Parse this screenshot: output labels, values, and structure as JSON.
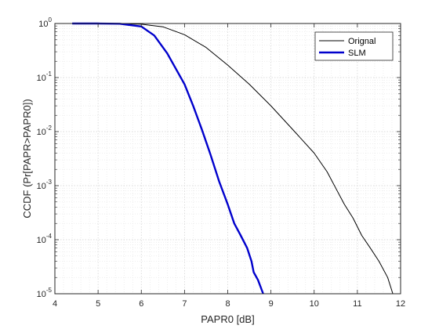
{
  "chart_data": {
    "type": "line",
    "xlabel": "PAPR0 [dB]",
    "ylabel": "CCDF (Pr[PAPR>PAPR0])",
    "xlim": [
      4,
      12
    ],
    "ylim": [
      1e-05,
      1
    ],
    "yscale": "log",
    "xticks": [
      "4",
      "5",
      "6",
      "7",
      "8",
      "9",
      "10",
      "11",
      "12"
    ],
    "ytick_base": "10",
    "ytick_exponents": [
      "-5",
      "-4",
      "-3",
      "-2",
      "-1",
      "0"
    ],
    "grid": true,
    "minor_grid": true,
    "legend_position": "top-right",
    "series": [
      {
        "name": "Orignal",
        "color": "#000000",
        "points": [
          [
            4.4,
            1
          ],
          [
            5.0,
            1
          ],
          [
            5.5,
            0.995
          ],
          [
            6.0,
            0.97
          ],
          [
            6.5,
            0.87
          ],
          [
            7.0,
            0.62
          ],
          [
            7.5,
            0.36
          ],
          [
            8.0,
            0.17
          ],
          [
            8.5,
            0.075
          ],
          [
            9.0,
            0.03
          ],
          [
            9.5,
            0.011
          ],
          [
            10.0,
            0.004
          ],
          [
            10.3,
            0.0018
          ],
          [
            10.5,
            0.0009
          ],
          [
            10.7,
            0.00045
          ],
          [
            10.9,
            0.00025
          ],
          [
            11.1,
            0.00012
          ],
          [
            11.3,
            7e-05
          ],
          [
            11.5,
            4e-05
          ],
          [
            11.7,
            2e-05
          ],
          [
            11.82,
            1e-05
          ]
        ]
      },
      {
        "name": "SLM",
        "color": "#0000CC",
        "points": [
          [
            4.4,
            1
          ],
          [
            5.0,
            1
          ],
          [
            5.5,
            0.99
          ],
          [
            6.0,
            0.88
          ],
          [
            6.3,
            0.6
          ],
          [
            6.6,
            0.28
          ],
          [
            7.0,
            0.075
          ],
          [
            7.2,
            0.03
          ],
          [
            7.4,
            0.011
          ],
          [
            7.6,
            0.0038
          ],
          [
            7.8,
            0.0012
          ],
          [
            8.0,
            0.00045
          ],
          [
            8.15,
            0.0002
          ],
          [
            8.3,
            0.00012
          ],
          [
            8.45,
            7e-05
          ],
          [
            8.55,
            4e-05
          ],
          [
            8.6,
            2.5e-05
          ],
          [
            8.7,
            1.8e-05
          ],
          [
            8.82,
            1e-05
          ]
        ]
      }
    ]
  }
}
